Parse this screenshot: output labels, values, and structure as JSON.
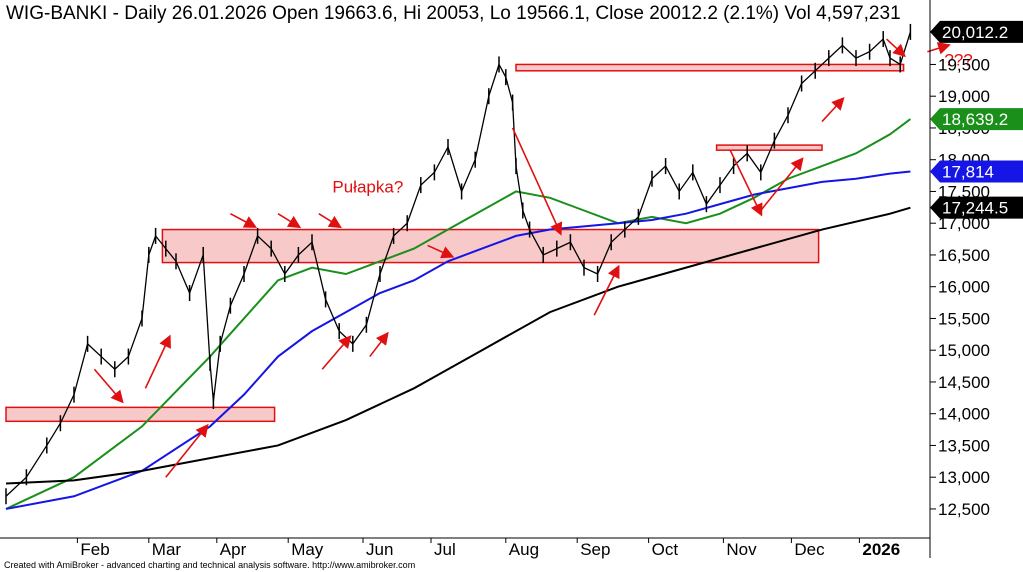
{
  "chart_data": {
    "type": "candlestick",
    "title": "WIG-BANKI - Daily 26.01.2026 Open 19663.6, Hi 20053, Lo 19566.1, Close 20012.2 (2.1%) Vol 4,597,231",
    "credit": "Created with AmiBroker - advanced charting and technical analysis software. http://www.amibroker.com",
    "y_ticks": [
      "12,500",
      "13,000",
      "13,500",
      "14,000",
      "14,500",
      "15,000",
      "15,500",
      "16,000",
      "16,500",
      "17,000",
      "17,500",
      "18,000",
      "18,500",
      "19,000",
      "19,500"
    ],
    "y_tick_values": [
      12500,
      13000,
      13500,
      14000,
      14500,
      15000,
      15500,
      16000,
      16500,
      17000,
      17500,
      18000,
      18500,
      19000,
      19500
    ],
    "ylim": [
      12200,
      20200
    ],
    "x_labels": [
      "Feb",
      "Mar",
      "Apr",
      "May",
      "Jun",
      "Jul",
      "Aug",
      "Sep",
      "Oct",
      "Nov",
      "Dec",
      "2026"
    ],
    "x_label_positions": [
      21,
      42,
      62,
      83,
      105,
      125,
      147,
      168,
      189,
      211,
      231,
      251
    ],
    "x_range": [
      0,
      270
    ],
    "last_badges": [
      {
        "label": "20,012.2",
        "value": 20012.2,
        "color": "#000000",
        "text_color": "#ffffff"
      },
      {
        "label": "18,639.2",
        "value": 18639.2,
        "color": "#1a8f1a",
        "text_color": "#ffffff"
      },
      {
        "label": "17,814",
        "value": 17814,
        "color": "#1515e6",
        "text_color": "#ffffff"
      },
      {
        "label": "17,244.5",
        "value": 17244.5,
        "color": "#000000",
        "text_color": "#ffffff"
      }
    ],
    "price": {
      "x": [
        0,
        6,
        12,
        16,
        20,
        24,
        28,
        32,
        36,
        40,
        42,
        44,
        47,
        50,
        54,
        58,
        60,
        61,
        63,
        66,
        70,
        74,
        78,
        82,
        86,
        90,
        94,
        98,
        102,
        106,
        110,
        114,
        118,
        122,
        126,
        130,
        134,
        138,
        142,
        145,
        147,
        149,
        150,
        152,
        154,
        158,
        162,
        166,
        170,
        174,
        178,
        182,
        186,
        190,
        194,
        198,
        202,
        206,
        210,
        214,
        218,
        222,
        226,
        230,
        234,
        238,
        242,
        246,
        250,
        254,
        258,
        260,
        263,
        266
      ],
      "values": [
        12700,
        13000,
        13500,
        13850,
        14300,
        15100,
        14900,
        14700,
        14900,
        15500,
        16500,
        16800,
        16600,
        16400,
        15900,
        16500,
        14800,
        14200,
        15100,
        15700,
        16200,
        16800,
        16600,
        16200,
        16500,
        16700,
        15800,
        15300,
        15100,
        15400,
        16200,
        16800,
        17000,
        17600,
        17800,
        18200,
        17500,
        18000,
        19000,
        19500,
        19300,
        18900,
        17900,
        17200,
        16900,
        16500,
        16600,
        16700,
        16300,
        16200,
        16700,
        16900,
        17100,
        17700,
        17900,
        17500,
        17800,
        17300,
        17600,
        17900,
        18100,
        17800,
        18300,
        18700,
        19200,
        19400,
        19600,
        19800,
        19600,
        19700,
        19900,
        19600,
        19500,
        20012.2
      ]
    },
    "series": [
      {
        "color": "#1a8f1a",
        "x": [
          0,
          20,
          40,
          60,
          70,
          80,
          90,
          100,
          110,
          120,
          130,
          140,
          150,
          160,
          170,
          180,
          190,
          200,
          210,
          220,
          230,
          240,
          250,
          260,
          266
        ],
        "values": [
          12500,
          13000,
          13800,
          14900,
          15500,
          16100,
          16300,
          16200,
          16400,
          16600,
          16900,
          17200,
          17500,
          17400,
          17200,
          17000,
          17100,
          17000,
          17150,
          17400,
          17700,
          17900,
          18100,
          18400,
          18639.2
        ]
      },
      {
        "color": "#1515e6",
        "x": [
          0,
          20,
          40,
          60,
          70,
          80,
          90,
          100,
          110,
          120,
          130,
          140,
          150,
          160,
          170,
          180,
          190,
          200,
          210,
          220,
          230,
          240,
          250,
          260,
          266
        ],
        "values": [
          12500,
          12700,
          13100,
          13800,
          14300,
          14900,
          15300,
          15600,
          15900,
          16100,
          16400,
          16600,
          16800,
          16900,
          16950,
          17000,
          17050,
          17150,
          17300,
          17450,
          17550,
          17650,
          17700,
          17780,
          17814
        ]
      },
      {
        "color": "#000000",
        "x": [
          0,
          20,
          40,
          60,
          80,
          100,
          120,
          140,
          160,
          180,
          200,
          220,
          240,
          260,
          266
        ],
        "values": [
          12900,
          12950,
          13100,
          13300,
          13500,
          13900,
          14400,
          15000,
          15600,
          16000,
          16300,
          16600,
          16900,
          17150,
          17244.5
        ]
      }
    ],
    "zones": [
      {
        "x0": 0,
        "x1": 79,
        "y0": 13880,
        "y1": 14100
      },
      {
        "x0": 46,
        "x1": 239,
        "y0": 16380,
        "y1": 16900
      },
      {
        "x0": 150,
        "x1": 264,
        "y0": 19400,
        "y1": 19500
      },
      {
        "x0": 209,
        "x1": 240,
        "y0": 18150,
        "y1": 18230
      }
    ],
    "annotations": [
      {
        "text": "Pułapka?",
        "x": 96,
        "value": 17480,
        "color": "#e01010"
      },
      {
        "text": "???",
        "x": 276,
        "value": 19480,
        "color": "#e01010"
      }
    ],
    "arrows": [
      {
        "x0": 26,
        "v0": 14700,
        "x1": 34,
        "v1": 14200
      },
      {
        "x0": 41,
        "v0": 14400,
        "x1": 48,
        "v1": 15200
      },
      {
        "x0": 47,
        "v0": 13000,
        "x1": 59,
        "v1": 13800
      },
      {
        "x0": 66,
        "v0": 17150,
        "x1": 73,
        "v1": 16950
      },
      {
        "x0": 80,
        "v0": 17150,
        "x1": 86,
        "v1": 16950
      },
      {
        "x0": 92,
        "v0": 17150,
        "x1": 98,
        "v1": 16950
      },
      {
        "x0": 93,
        "v0": 14700,
        "x1": 101,
        "v1": 15200
      },
      {
        "x0": 107,
        "v0": 14900,
        "x1": 112,
        "v1": 15250
      },
      {
        "x0": 124,
        "v0": 16650,
        "x1": 131,
        "v1": 16480
      },
      {
        "x0": 149,
        "v0": 18500,
        "x1": 163,
        "v1": 16850
      },
      {
        "x0": 173,
        "v0": 15550,
        "x1": 180,
        "v1": 16300
      },
      {
        "x0": 213,
        "v0": 18150,
        "x1": 222,
        "v1": 17150
      },
      {
        "x0": 222,
        "v0": 17200,
        "x1": 234,
        "v1": 18000
      },
      {
        "x0": 240,
        "v0": 18600,
        "x1": 246,
        "v1": 18950
      },
      {
        "x0": 259,
        "v0": 19900,
        "x1": 264,
        "v1": 19650
      },
      {
        "x0": 271,
        "v0": 19700,
        "x1": 277,
        "v1": 19800
      }
    ]
  }
}
